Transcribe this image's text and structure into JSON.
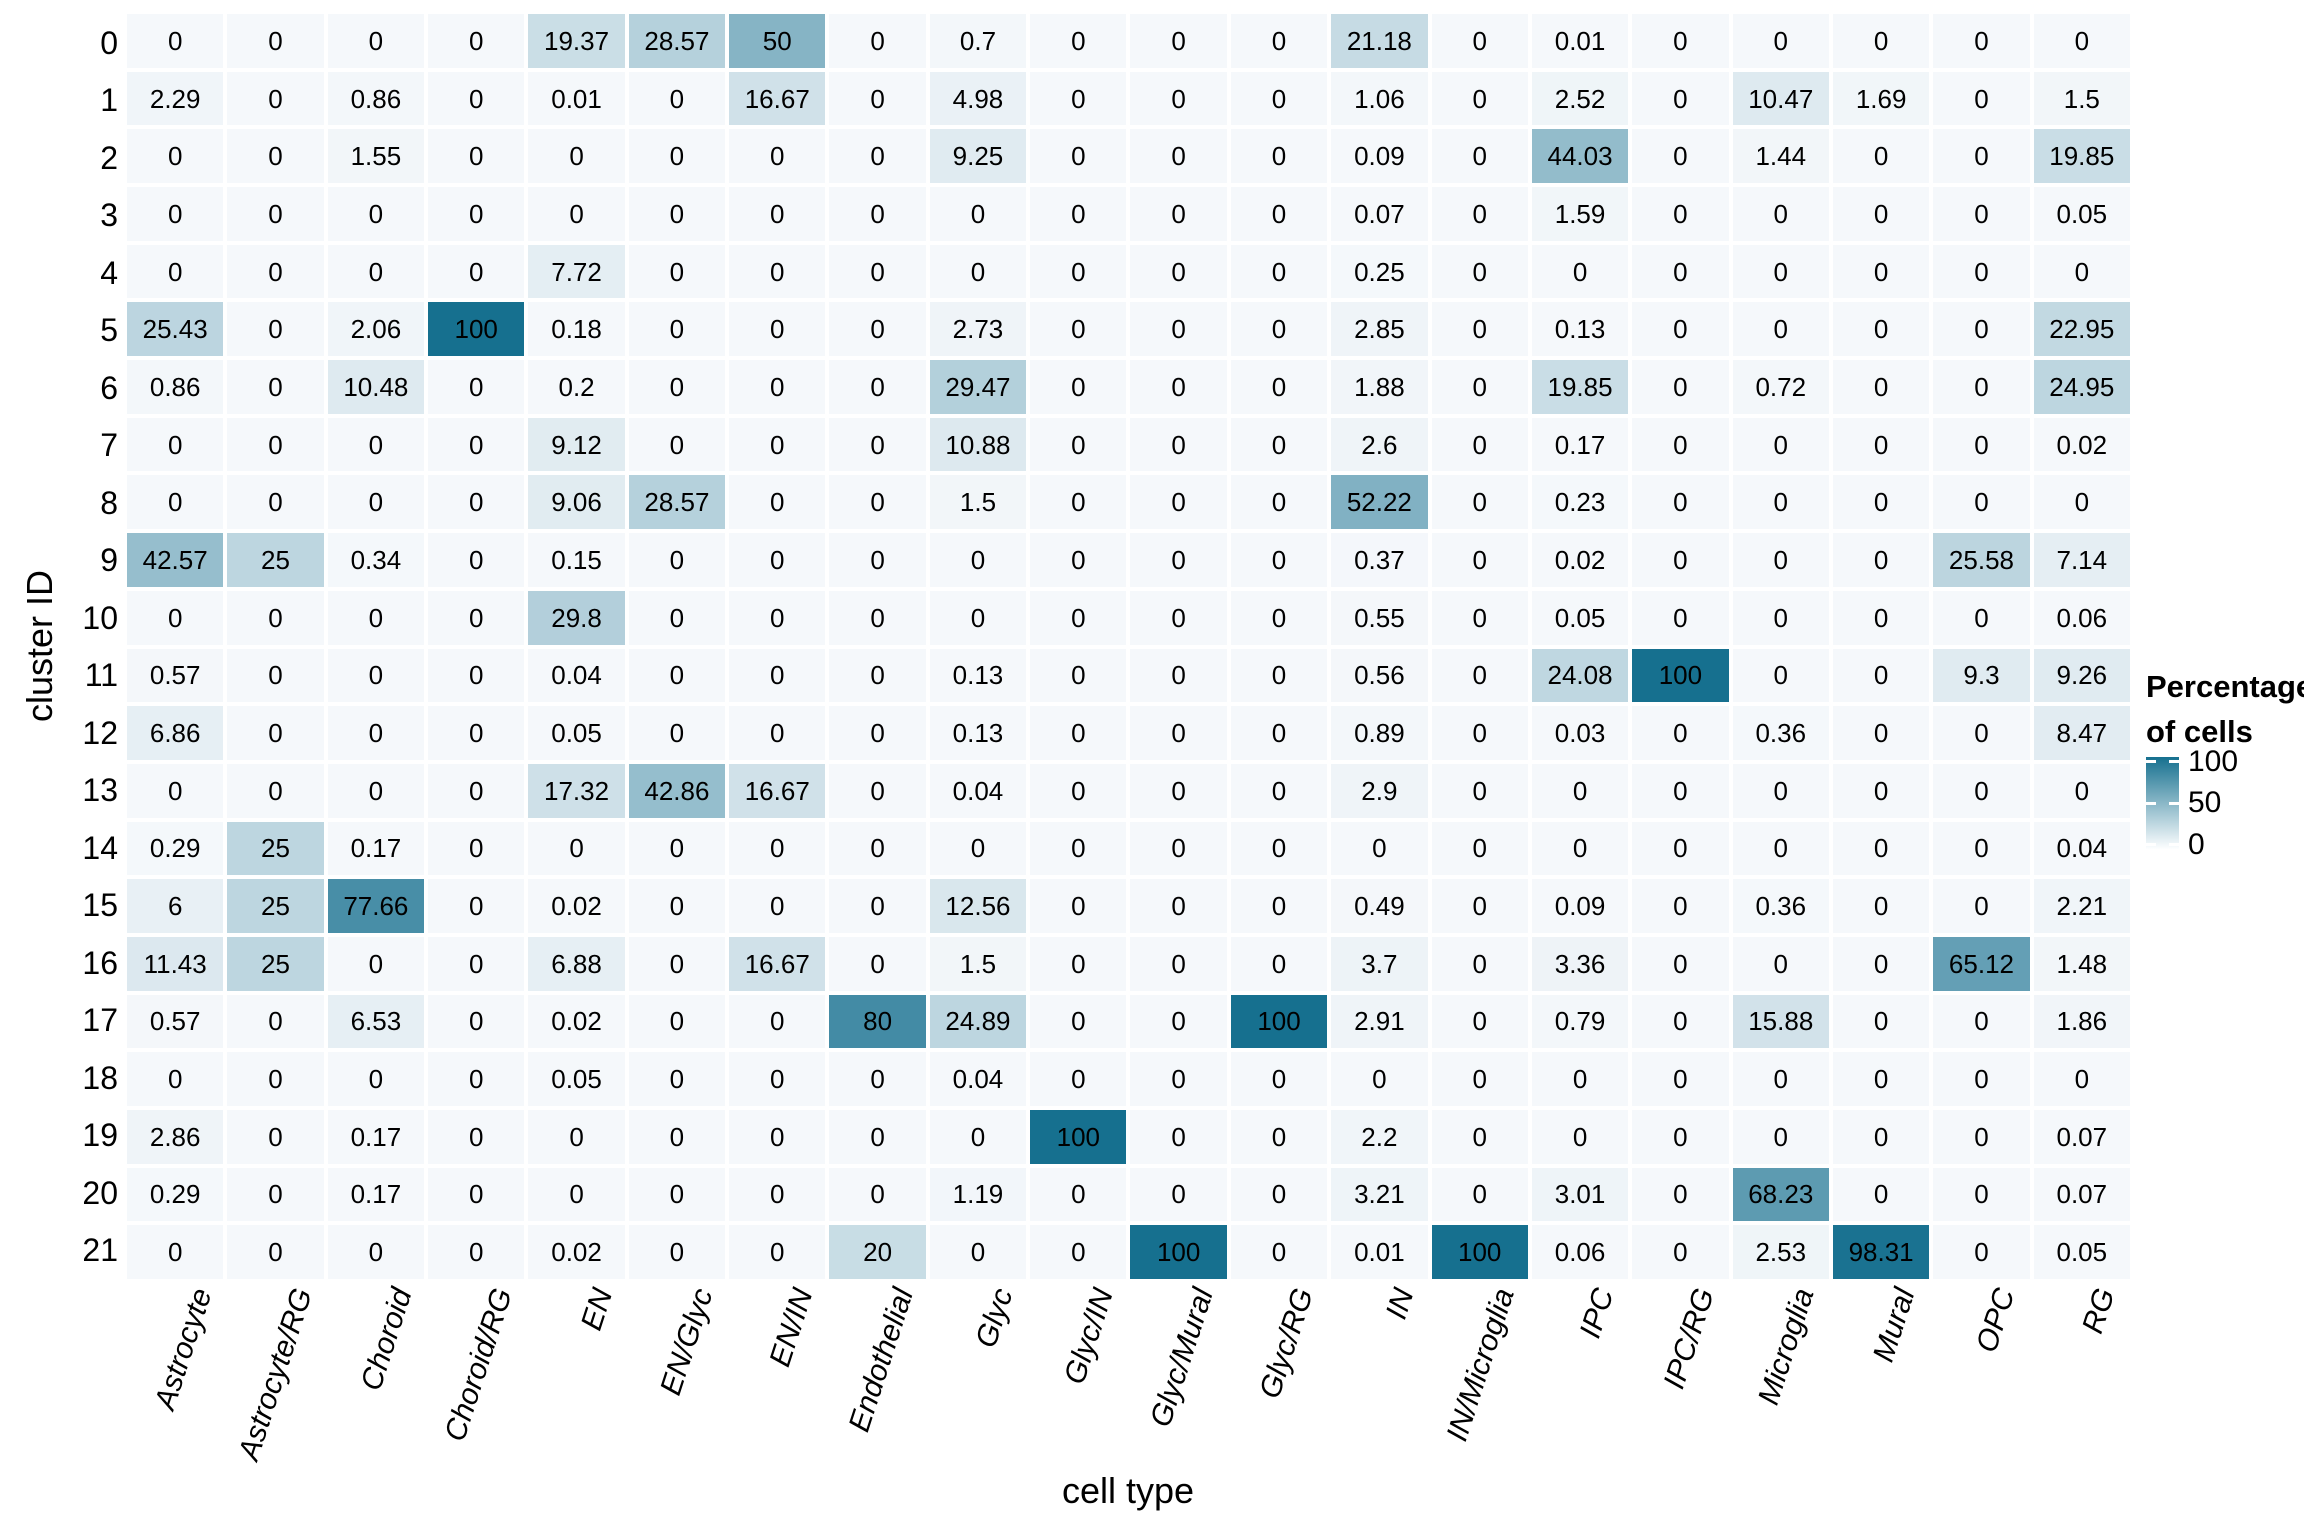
{
  "chart_data": {
    "type": "heatmap",
    "title": "",
    "xlabel": "cell type",
    "ylabel": "cluster ID",
    "columns": [
      "Astrocyte",
      "Astrocyte/RG",
      "Choroid",
      "Choroid/RG",
      "EN",
      "EN/Glyc",
      "EN/IN",
      "Endothelial",
      "Glyc",
      "Glyc/IN",
      "Glyc/Mural",
      "Glyc/RG",
      "IN",
      "IN/Microglia",
      "IPC",
      "IPC/RG",
      "Microglia",
      "Mural",
      "OPC",
      "RG"
    ],
    "rows": [
      "0",
      "1",
      "2",
      "3",
      "4",
      "5",
      "6",
      "7",
      "8",
      "9",
      "10",
      "11",
      "12",
      "13",
      "14",
      "15",
      "16",
      "17",
      "18",
      "19",
      "20",
      "21"
    ],
    "values": [
      [
        "0",
        "0",
        "0",
        "0",
        "19.37",
        "28.57",
        "50",
        "0",
        "0.7",
        "0",
        "0",
        "0",
        "21.18",
        "0",
        "0.01",
        "0",
        "0",
        "0",
        "0",
        "0"
      ],
      [
        "2.29",
        "0",
        "0.86",
        "0",
        "0.01",
        "0",
        "16.67",
        "0",
        "4.98",
        "0",
        "0",
        "0",
        "1.06",
        "0",
        "2.52",
        "0",
        "10.47",
        "1.69",
        "0",
        "1.5"
      ],
      [
        "0",
        "0",
        "1.55",
        "0",
        "0",
        "0",
        "0",
        "0",
        "9.25",
        "0",
        "0",
        "0",
        "0.09",
        "0",
        "44.03",
        "0",
        "1.44",
        "0",
        "0",
        "19.85"
      ],
      [
        "0",
        "0",
        "0",
        "0",
        "0",
        "0",
        "0",
        "0",
        "0",
        "0",
        "0",
        "0",
        "0.07",
        "0",
        "1.59",
        "0",
        "0",
        "0",
        "0",
        "0.05"
      ],
      [
        "0",
        "0",
        "0",
        "0",
        "7.72",
        "0",
        "0",
        "0",
        "0",
        "0",
        "0",
        "0",
        "0.25",
        "0",
        "0",
        "0",
        "0",
        "0",
        "0",
        "0"
      ],
      [
        "25.43",
        "0",
        "2.06",
        "100",
        "0.18",
        "0",
        "0",
        "0",
        "2.73",
        "0",
        "0",
        "0",
        "2.85",
        "0",
        "0.13",
        "0",
        "0",
        "0",
        "0",
        "22.95"
      ],
      [
        "0.86",
        "0",
        "10.48",
        "0",
        "0.2",
        "0",
        "0",
        "0",
        "29.47",
        "0",
        "0",
        "0",
        "1.88",
        "0",
        "19.85",
        "0",
        "0.72",
        "0",
        "0",
        "24.95"
      ],
      [
        "0",
        "0",
        "0",
        "0",
        "9.12",
        "0",
        "0",
        "0",
        "10.88",
        "0",
        "0",
        "0",
        "2.6",
        "0",
        "0.17",
        "0",
        "0",
        "0",
        "0",
        "0.02"
      ],
      [
        "0",
        "0",
        "0",
        "0",
        "9.06",
        "28.57",
        "0",
        "0",
        "1.5",
        "0",
        "0",
        "0",
        "52.22",
        "0",
        "0.23",
        "0",
        "0",
        "0",
        "0",
        "0"
      ],
      [
        "42.57",
        "25",
        "0.34",
        "0",
        "0.15",
        "0",
        "0",
        "0",
        "0",
        "0",
        "0",
        "0",
        "0.37",
        "0",
        "0.02",
        "0",
        "0",
        "0",
        "25.58",
        "7.14"
      ],
      [
        "0",
        "0",
        "0",
        "0",
        "29.8",
        "0",
        "0",
        "0",
        "0",
        "0",
        "0",
        "0",
        "0.55",
        "0",
        "0.05",
        "0",
        "0",
        "0",
        "0",
        "0.06"
      ],
      [
        "0.57",
        "0",
        "0",
        "0",
        "0.04",
        "0",
        "0",
        "0",
        "0.13",
        "0",
        "0",
        "0",
        "0.56",
        "0",
        "24.08",
        "100",
        "0",
        "0",
        "9.3",
        "9.26"
      ],
      [
        "6.86",
        "0",
        "0",
        "0",
        "0.05",
        "0",
        "0",
        "0",
        "0.13",
        "0",
        "0",
        "0",
        "0.89",
        "0",
        "0.03",
        "0",
        "0.36",
        "0",
        "0",
        "8.47"
      ],
      [
        "0",
        "0",
        "0",
        "0",
        "17.32",
        "42.86",
        "16.67",
        "0",
        "0.04",
        "0",
        "0",
        "0",
        "2.9",
        "0",
        "0",
        "0",
        "0",
        "0",
        "0",
        "0"
      ],
      [
        "0.29",
        "25",
        "0.17",
        "0",
        "0",
        "0",
        "0",
        "0",
        "0",
        "0",
        "0",
        "0",
        "0",
        "0",
        "0",
        "0",
        "0",
        "0",
        "0",
        "0.04"
      ],
      [
        "6",
        "25",
        "77.66",
        "0",
        "0.02",
        "0",
        "0",
        "0",
        "12.56",
        "0",
        "0",
        "0",
        "0.49",
        "0",
        "0.09",
        "0",
        "0.36",
        "0",
        "0",
        "2.21"
      ],
      [
        "11.43",
        "25",
        "0",
        "0",
        "6.88",
        "0",
        "16.67",
        "0",
        "1.5",
        "0",
        "0",
        "0",
        "3.7",
        "0",
        "3.36",
        "0",
        "0",
        "0",
        "65.12",
        "1.48"
      ],
      [
        "0.57",
        "0",
        "6.53",
        "0",
        "0.02",
        "0",
        "0",
        "80",
        "24.89",
        "0",
        "0",
        "100",
        "2.91",
        "0",
        "0.79",
        "0",
        "15.88",
        "0",
        "0",
        "1.86"
      ],
      [
        "0",
        "0",
        "0",
        "0",
        "0.05",
        "0",
        "0",
        "0",
        "0.04",
        "0",
        "0",
        "0",
        "0",
        "0",
        "0",
        "0",
        "0",
        "0",
        "0",
        "0"
      ],
      [
        "2.86",
        "0",
        "0.17",
        "0",
        "0",
        "0",
        "0",
        "0",
        "0",
        "100",
        "0",
        "0",
        "2.2",
        "0",
        "0",
        "0",
        "0",
        "0",
        "0",
        "0.07"
      ],
      [
        "0.29",
        "0",
        "0.17",
        "0",
        "0",
        "0",
        "0",
        "0",
        "1.19",
        "0",
        "0",
        "0",
        "3.21",
        "0",
        "3.01",
        "0",
        "68.23",
        "0",
        "0",
        "0.07"
      ],
      [
        "0",
        "0",
        "0",
        "0",
        "0.02",
        "0",
        "0",
        "20",
        "0",
        "0",
        "100",
        "0",
        "0.01",
        "100",
        "0.06",
        "0",
        "2.53",
        "98.31",
        "0",
        "0.05"
      ]
    ],
    "legend": {
      "title_line1": "Percentage",
      "title_line2": "of cells",
      "ticks": [
        "100",
        "50",
        "0"
      ]
    },
    "colors": {
      "low": "#f5f8fb",
      "high": "#16708f",
      "legend_low": "#fdfeff",
      "cell_text": "#000000",
      "background": "#ffffff"
    },
    "axis_ranges": {
      "scale_min": 0,
      "scale_max": 100
    },
    "layout": {
      "grid": "off",
      "legend_position": "right",
      "x_label_angle_deg": 72,
      "x_labels_italic": true
    }
  }
}
